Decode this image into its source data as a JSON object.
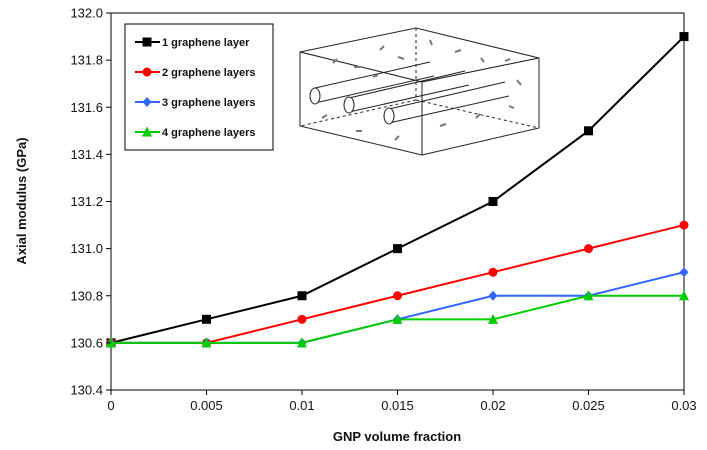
{
  "chart_data": {
    "type": "line",
    "title": "",
    "xlabel": "GNP volume fraction",
    "ylabel": "Axial modulus (GPa)",
    "x": [
      0,
      0.005,
      0.01,
      0.015,
      0.02,
      0.025,
      0.03
    ],
    "x_tick_labels": [
      "0",
      "0.005",
      "0.01",
      "0.015",
      "0.02",
      "0.025",
      "0.03"
    ],
    "y_tick_labels": [
      "130.4",
      "130.6",
      "130.8",
      "131.0",
      "131.2",
      "131.4",
      "131.6",
      "131.8",
      "132.0"
    ],
    "xlim": [
      0,
      0.03
    ],
    "ylim": [
      130.4,
      132.0
    ],
    "grid": false,
    "legend_position": "top-left",
    "series": [
      {
        "name": "1 graphene layer",
        "color": "#000000",
        "marker": "square",
        "values": [
          130.6,
          130.7,
          130.8,
          131.0,
          131.2,
          131.5,
          131.9
        ]
      },
      {
        "name": "2 graphene layers",
        "color": "#ff0000",
        "marker": "circle",
        "values": [
          130.6,
          130.6,
          130.7,
          130.8,
          130.9,
          131.0,
          131.1
        ]
      },
      {
        "name": "3 graphene layers",
        "color": "#3366ff",
        "marker": "diamond",
        "values": [
          130.6,
          130.6,
          130.6,
          130.7,
          130.8,
          130.8,
          130.9
        ]
      },
      {
        "name": "4 graphene layers",
        "color": "#00cc00",
        "marker": "triangle",
        "values": [
          130.6,
          130.6,
          130.6,
          130.7,
          130.7,
          130.8,
          130.8
        ]
      }
    ],
    "inset_image": "composite-cylinder-schematic"
  }
}
